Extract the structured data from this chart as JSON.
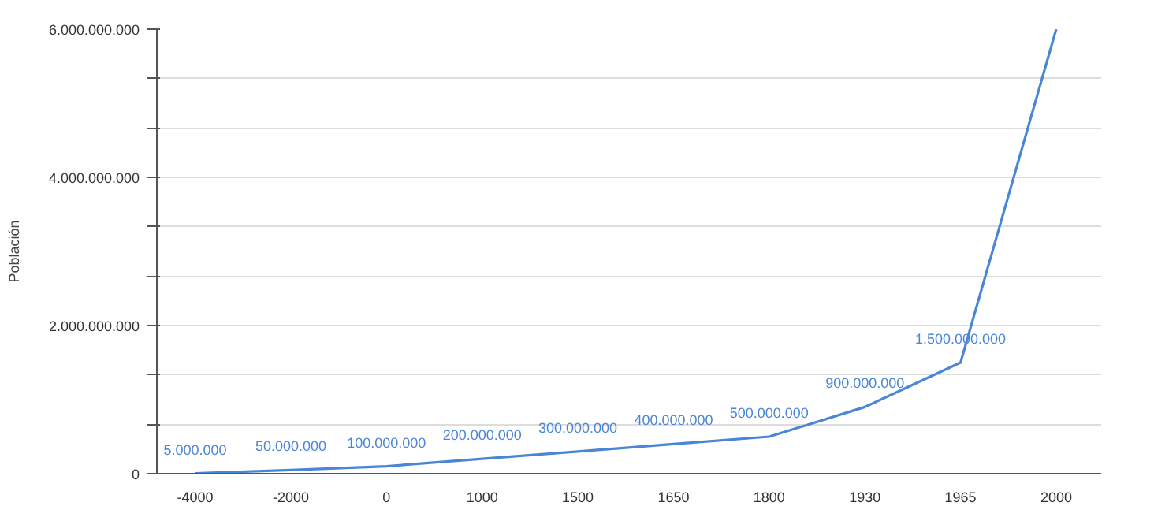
{
  "chart_data": {
    "type": "line",
    "ylabel": "Población",
    "categories": [
      "-4000",
      "-2000",
      "0",
      "1000",
      "1500",
      "1650",
      "1800",
      "1930",
      "1965",
      "2000"
    ],
    "series": [
      {
        "color": "#4a86d6",
        "values": [
          5000000,
          50000000,
          100000000,
          200000000,
          300000000,
          400000000,
          500000000,
          900000000,
          1500000000,
          6000000000
        ],
        "value_labels": [
          "5.000.000",
          "50.000.000",
          "100.000.000",
          "200.000.000",
          "300.000.000",
          "400.000.000",
          "500.000.000",
          "900.000.000",
          "1.500.000.000",
          null
        ]
      }
    ],
    "ylim": [
      0,
      6000000000
    ],
    "yticks": [
      0,
      {
        "value": 666666667,
        "label": null
      },
      {
        "value": 1333333333,
        "label": null
      },
      {
        "value": 2000000000,
        "label": "2.000.000.000"
      },
      {
        "value": 2666666667,
        "label": null
      },
      {
        "value": 3333333333,
        "label": null
      },
      {
        "value": 4000000000,
        "label": "4.000.000.000"
      },
      {
        "value": 4666666667,
        "label": null
      },
      {
        "value": 5333333333,
        "label": null
      },
      {
        "value": 6000000000,
        "label": "6.000.000.000"
      }
    ],
    "grid": "y",
    "marker": "none",
    "line_style": "solid"
  }
}
